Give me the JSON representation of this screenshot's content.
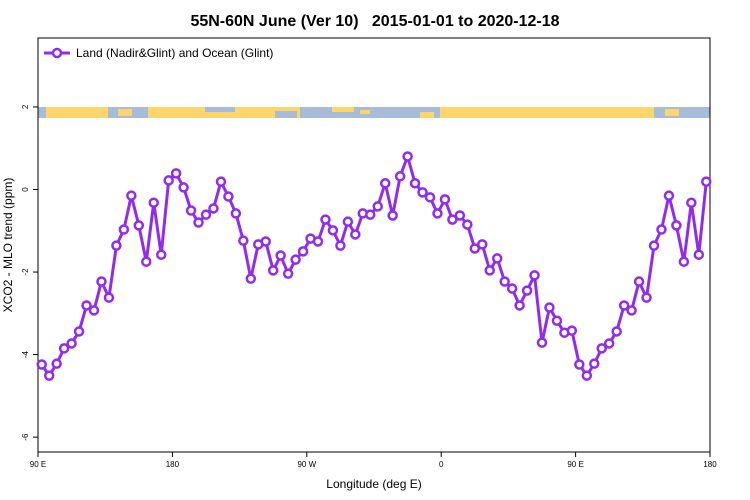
{
  "chart_data": {
    "type": "line",
    "title": "55N-60N June (Ver 10)   2015-01-01 to 2020-12-18",
    "x_label": "Longitude (deg E)",
    "y_label": "XCO2 - MLO trend (ppm)",
    "xlim": [
      90,
      540
    ],
    "ylim": [
      -6.36,
      3.67
    ],
    "xticks": [
      {
        "value": 90,
        "label": "90 E"
      },
      180,
      {
        "value": 270,
        "label": "90 W"
      },
      {
        "value": 360,
        "label": "0"
      },
      {
        "value": 450,
        "label": "90 E"
      },
      {
        "value": 540,
        "label": "180"
      }
    ],
    "yticks": [
      -6,
      -4,
      -2,
      0,
      2
    ],
    "legend": "top-left",
    "x": [
      92.5,
      97.5,
      102.5,
      107.5,
      112.5,
      117.5,
      122.5,
      127.5,
      132.5,
      137.5,
      142.5,
      147.5,
      152.5,
      157.5,
      162.5,
      167.5,
      172.5,
      177.5,
      182.5,
      187.5,
      192.5,
      197.5,
      202.5,
      207.5,
      212.5,
      217.5,
      222.5,
      227.5,
      232.5,
      237.5,
      242.5,
      247.5,
      252.5,
      257.5,
      262.5,
      267.5,
      272.5,
      277.5,
      282.5,
      287.5,
      292.5,
      297.5,
      302.5,
      307.5,
      312.5,
      317.5,
      322.5,
      327.5,
      332.5,
      337.5,
      342.5,
      347.5,
      352.5,
      357.5,
      362.5,
      367.5,
      372.5,
      377.5,
      382.5,
      387.5,
      392.5,
      397.5,
      402.5,
      407.5,
      412.5,
      417.5,
      422.5,
      427.5,
      432.5,
      437.5,
      442.5,
      447.5,
      452.5,
      457.5,
      462.5,
      467.5,
      472.5,
      477.5,
      482.5,
      487.5,
      492.5,
      497.5,
      502.5,
      507.5,
      512.5,
      517.5,
      522.5,
      527.5,
      532.5,
      537.5
    ],
    "series": [
      {
        "name": "Land (Nadir&Glint) and Ocean (Glint)",
        "color": "#912cee",
        "values": [
          -4.24,
          -4.51,
          -4.22,
          -3.85,
          -3.73,
          -3.44,
          -2.81,
          -2.93,
          -2.23,
          -2.62,
          -1.36,
          -0.97,
          -0.15,
          -0.87,
          -1.75,
          -0.32,
          -1.58,
          0.22,
          0.39,
          0.05,
          -0.51,
          -0.8,
          -0.61,
          -0.46,
          0.19,
          -0.17,
          -0.58,
          -1.24,
          -2.16,
          -1.33,
          -1.26,
          -1.96,
          -1.6,
          -2.04,
          -1.7,
          -1.5,
          -1.19,
          -1.26,
          -0.73,
          -0.99,
          -1.36,
          -0.78,
          -1.09,
          -0.58,
          -0.61,
          -0.41,
          0.15,
          -0.63,
          0.32,
          0.8,
          0.15,
          -0.07,
          -0.19,
          -0.58,
          -0.24,
          -0.73,
          -0.63,
          -0.85,
          -1.43,
          -1.33,
          -1.96,
          -1.67,
          -2.23,
          -2.4,
          -2.81,
          -2.45,
          -2.08,
          -3.71,
          -2.86,
          -3.18,
          -3.47,
          -3.42,
          -4.24,
          -4.51,
          -4.22,
          -3.85,
          -3.73,
          -3.44,
          -2.81,
          -2.93,
          -2.23,
          -2.62,
          -1.36,
          -0.97,
          -0.15,
          -0.87,
          -1.75,
          -0.32,
          -1.58,
          0.19
        ]
      }
    ]
  }
}
